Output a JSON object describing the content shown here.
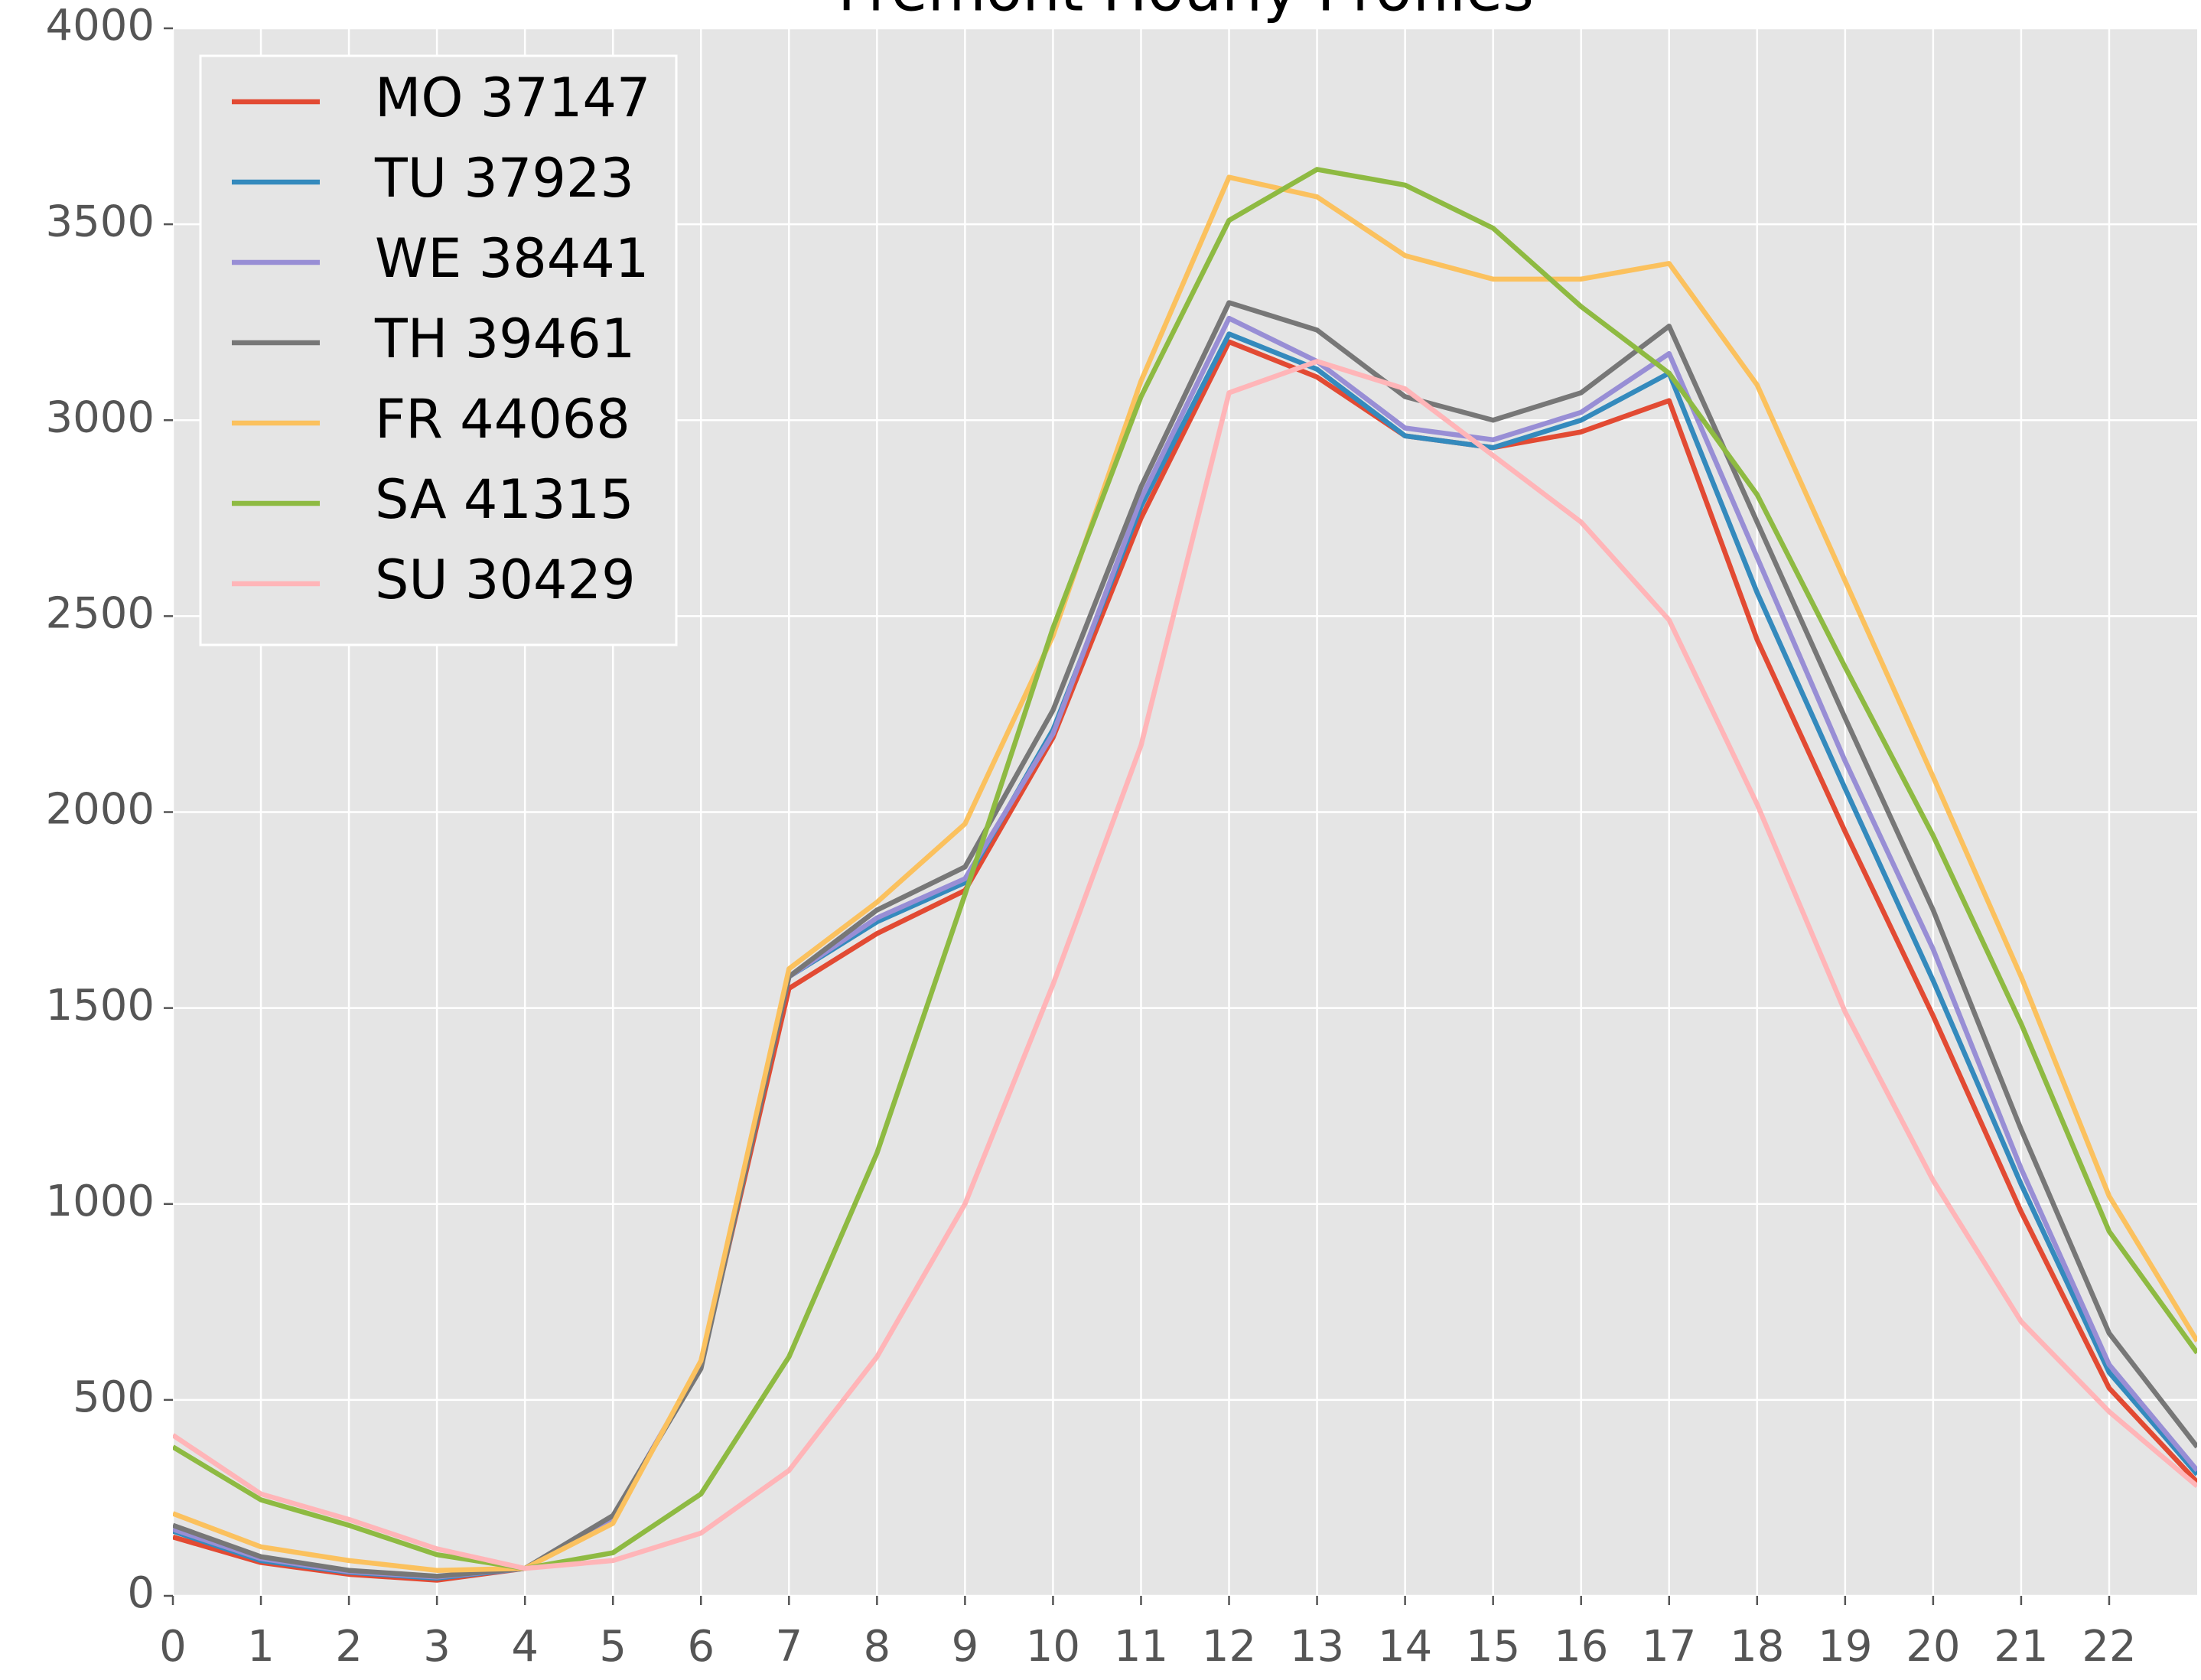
{
  "chart_data": {
    "type": "line",
    "title": "Fremont Hourly Profiles",
    "x": [
      0,
      1,
      2,
      3,
      4,
      5,
      6,
      7,
      8,
      9,
      10,
      11,
      12,
      13,
      14,
      15,
      16,
      17,
      18,
      19,
      20,
      21,
      22,
      23
    ],
    "xlim": [
      0,
      23
    ],
    "xticks": [
      0,
      1,
      2,
      3,
      4,
      5,
      6,
      7,
      8,
      9,
      10,
      11,
      12,
      13,
      14,
      15,
      16,
      17,
      18,
      19,
      20,
      21,
      22
    ],
    "ylim": [
      0,
      4000
    ],
    "yticks": [
      0,
      500,
      1000,
      1500,
      2000,
      2500,
      3000,
      3500,
      4000
    ],
    "grid": true,
    "legend": "upper left",
    "series": [
      {
        "name": "MO 37147",
        "color": "#E24A33",
        "values": [
          150,
          85,
          55,
          40,
          70,
          195,
          590,
          1550,
          1690,
          1800,
          2190,
          2750,
          3200,
          3110,
          2960,
          2930,
          2970,
          3050,
          2440,
          1950,
          1480,
          980,
          530,
          290
        ]
      },
      {
        "name": "TU 37923",
        "color": "#348ABD",
        "values": [
          165,
          90,
          60,
          45,
          70,
          195,
          590,
          1580,
          1720,
          1820,
          2210,
          2780,
          3220,
          3130,
          2960,
          2930,
          3000,
          3120,
          2560,
          2060,
          1570,
          1050,
          570,
          310
        ]
      },
      {
        "name": "WE 38441",
        "color": "#988ED5",
        "values": [
          170,
          95,
          62,
          48,
          70,
          200,
          590,
          1580,
          1730,
          1830,
          2200,
          2800,
          3260,
          3150,
          2980,
          2950,
          3020,
          3170,
          2650,
          2130,
          1650,
          1090,
          590,
          320
        ]
      },
      {
        "name": "TH 39461",
        "color": "#777777",
        "values": [
          180,
          100,
          65,
          50,
          70,
          205,
          580,
          1580,
          1750,
          1860,
          2260,
          2830,
          3300,
          3230,
          3060,
          3000,
          3070,
          3240,
          2740,
          2240,
          1750,
          1190,
          670,
          380
        ]
      },
      {
        "name": "FR 44068",
        "color": "#FBC15E",
        "values": [
          210,
          125,
          90,
          65,
          70,
          185,
          600,
          1600,
          1770,
          1970,
          2450,
          3100,
          3620,
          3570,
          3420,
          3360,
          3360,
          3400,
          3090,
          2590,
          2090,
          1580,
          1020,
          650
        ]
      },
      {
        "name": "SA 41315",
        "color": "#8EBA42",
        "values": [
          380,
          245,
          180,
          105,
          70,
          110,
          260,
          610,
          1130,
          1790,
          2470,
          3060,
          3510,
          3640,
          3600,
          3490,
          3290,
          3120,
          2810,
          2370,
          1940,
          1460,
          930,
          620
        ]
      },
      {
        "name": "SU 30429",
        "color": "#FFB5B8",
        "values": [
          410,
          260,
          195,
          120,
          70,
          90,
          160,
          320,
          610,
          1000,
          1560,
          2170,
          3070,
          3150,
          3080,
          2910,
          2740,
          2490,
          2020,
          1490,
          1060,
          700,
          470,
          280
        ]
      }
    ]
  }
}
